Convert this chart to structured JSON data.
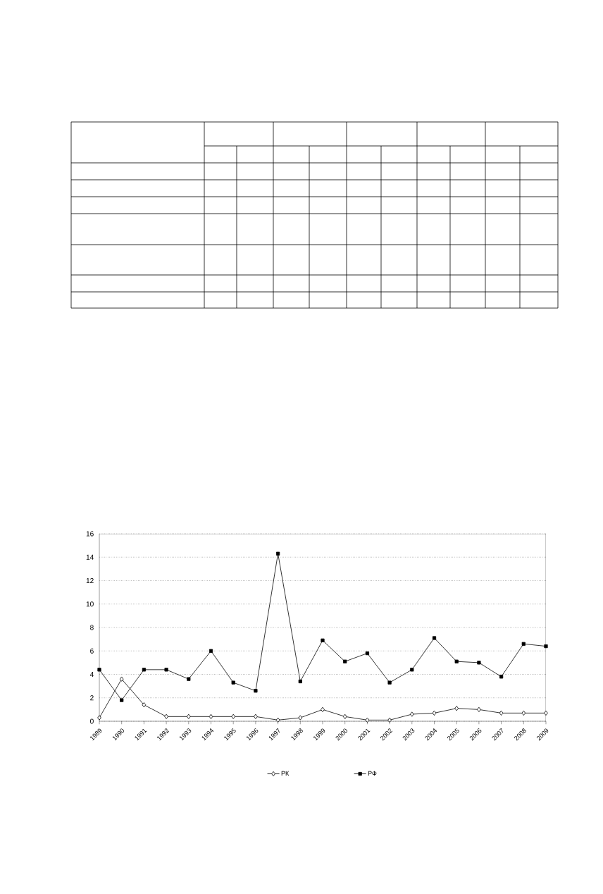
{
  "chart_data": {
    "type": "line",
    "categories": [
      "1989",
      "1990",
      "1991",
      "1992",
      "1993",
      "1994",
      "1995",
      "1996",
      "1997",
      "1998",
      "1999",
      "2000",
      "2001",
      "2002",
      "2003",
      "2004",
      "2005",
      "2006",
      "2007",
      "2008",
      "2009"
    ],
    "series": [
      {
        "name": "РК",
        "color": "#000000",
        "marker": "diamond",
        "values": [
          0.3,
          3.6,
          1.4,
          0.4,
          0.4,
          0.4,
          0.4,
          0.4,
          0.1,
          0.3,
          1.0,
          0.4,
          0.1,
          0.1,
          0.6,
          0.7,
          1.1,
          1.0,
          0.7,
          0.7,
          0.7
        ]
      },
      {
        "name": "РФ",
        "color": "#000000",
        "marker": "square",
        "values": [
          4.4,
          1.8,
          4.4,
          4.4,
          3.6,
          6.0,
          3.3,
          2.6,
          14.3,
          3.4,
          6.9,
          5.1,
          5.8,
          3.3,
          4.4,
          7.1,
          5.1,
          5.0,
          3.8,
          6.6,
          6.4
        ]
      }
    ],
    "ylim": [
      0,
      16
    ],
    "yticks": [
      0,
      2,
      4,
      6,
      8,
      10,
      12,
      14,
      16
    ],
    "grid": "y",
    "legend": "bottom",
    "line_style": "solid"
  }
}
